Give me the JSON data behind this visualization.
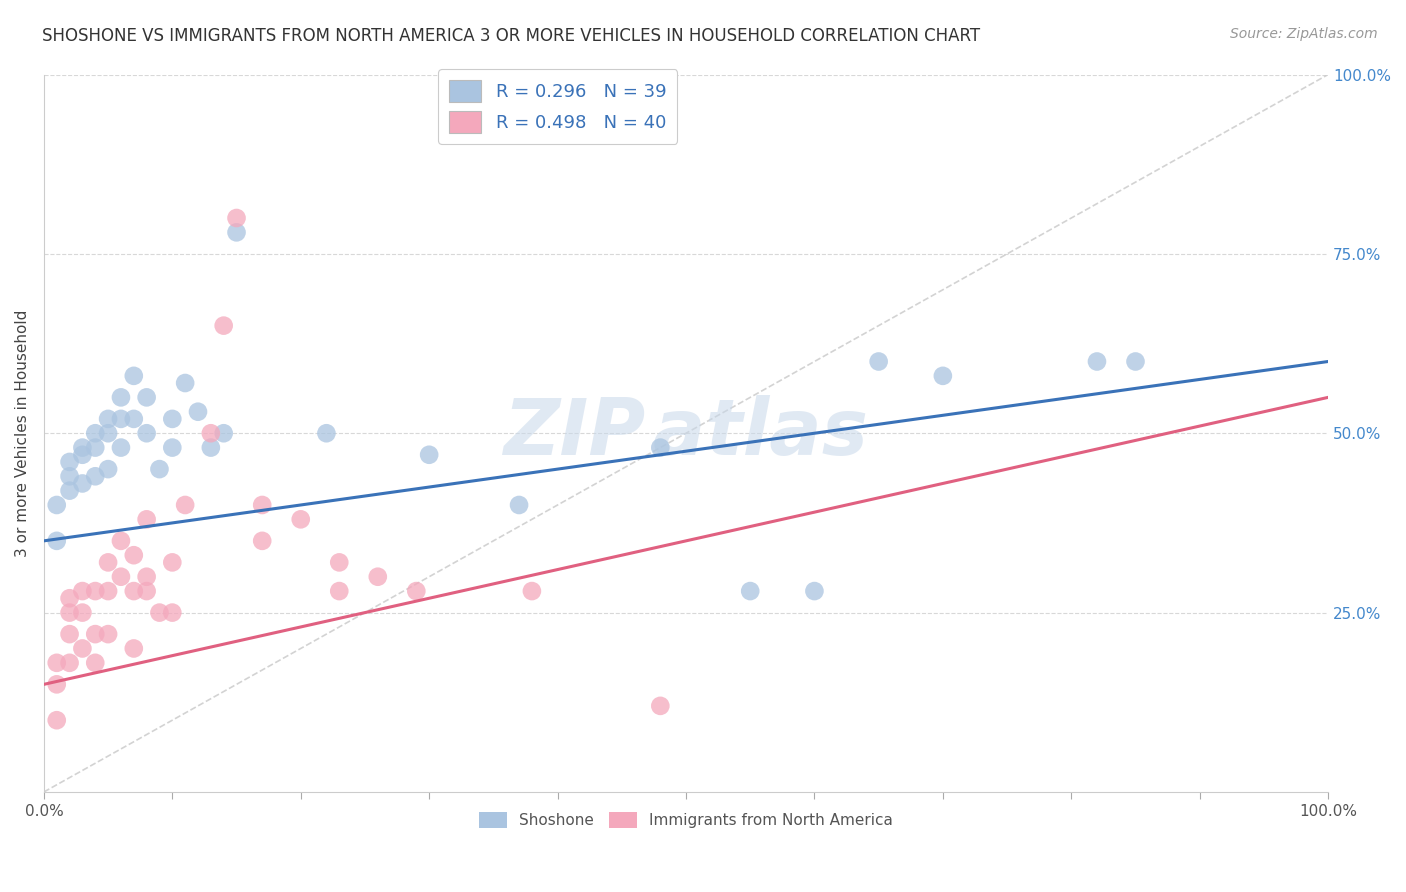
{
  "title": "SHOSHONE VS IMMIGRANTS FROM NORTH AMERICA 3 OR MORE VEHICLES IN HOUSEHOLD CORRELATION CHART",
  "source": "Source: ZipAtlas.com",
  "ylabel": "3 or more Vehicles in Household",
  "legend_label1": "Shoshone",
  "legend_label2": "Immigrants from North America",
  "R1": 0.296,
  "N1": 39,
  "R2": 0.498,
  "N2": 40,
  "color_blue": "#aac4e0",
  "color_pink": "#f4a8bc",
  "line_blue": "#3a72b8",
  "line_pink": "#e06080",
  "line_diag": "#c8c8c8",
  "xlim": [
    0,
    100
  ],
  "ylim": [
    0,
    100
  ],
  "yticks": [
    25,
    50,
    75,
    100
  ],
  "ytick_labels": [
    "25.0%",
    "50.0%",
    "75.0%",
    "100.0%"
  ],
  "xtick_positions": [
    0,
    10,
    20,
    30,
    40,
    50,
    60,
    70,
    80,
    90,
    100
  ],
  "grid_color": "#d8d8d8",
  "background_color": "#ffffff",
  "title_fontsize": 12,
  "label_fontsize": 11,
  "tick_fontsize": 11,
  "source_fontsize": 10,
  "blue_x": [
    1,
    1,
    2,
    2,
    2,
    3,
    3,
    3,
    4,
    4,
    4,
    5,
    5,
    5,
    6,
    6,
    6,
    7,
    7,
    8,
    8,
    9,
    10,
    10,
    11,
    12,
    13,
    14,
    15,
    22,
    30,
    37,
    48,
    55,
    60,
    65,
    70,
    82,
    85
  ],
  "blue_y": [
    35,
    40,
    42,
    44,
    46,
    43,
    47,
    48,
    44,
    48,
    50,
    45,
    50,
    52,
    48,
    52,
    55,
    52,
    58,
    50,
    55,
    45,
    48,
    52,
    57,
    53,
    48,
    50,
    78,
    50,
    47,
    40,
    48,
    28,
    28,
    60,
    58,
    60,
    60
  ],
  "pink_x": [
    1,
    1,
    1,
    2,
    2,
    2,
    2,
    3,
    3,
    3,
    4,
    4,
    4,
    5,
    5,
    5,
    6,
    6,
    7,
    7,
    7,
    8,
    8,
    8,
    9,
    10,
    10,
    11,
    13,
    14,
    15,
    17,
    17,
    20,
    23,
    23,
    26,
    29,
    38,
    48
  ],
  "pink_y": [
    10,
    15,
    18,
    18,
    22,
    25,
    27,
    20,
    25,
    28,
    18,
    22,
    28,
    22,
    28,
    32,
    30,
    35,
    20,
    28,
    33,
    28,
    30,
    38,
    25,
    25,
    32,
    40,
    50,
    65,
    80,
    35,
    40,
    38,
    28,
    32,
    30,
    28,
    28,
    12
  ]
}
